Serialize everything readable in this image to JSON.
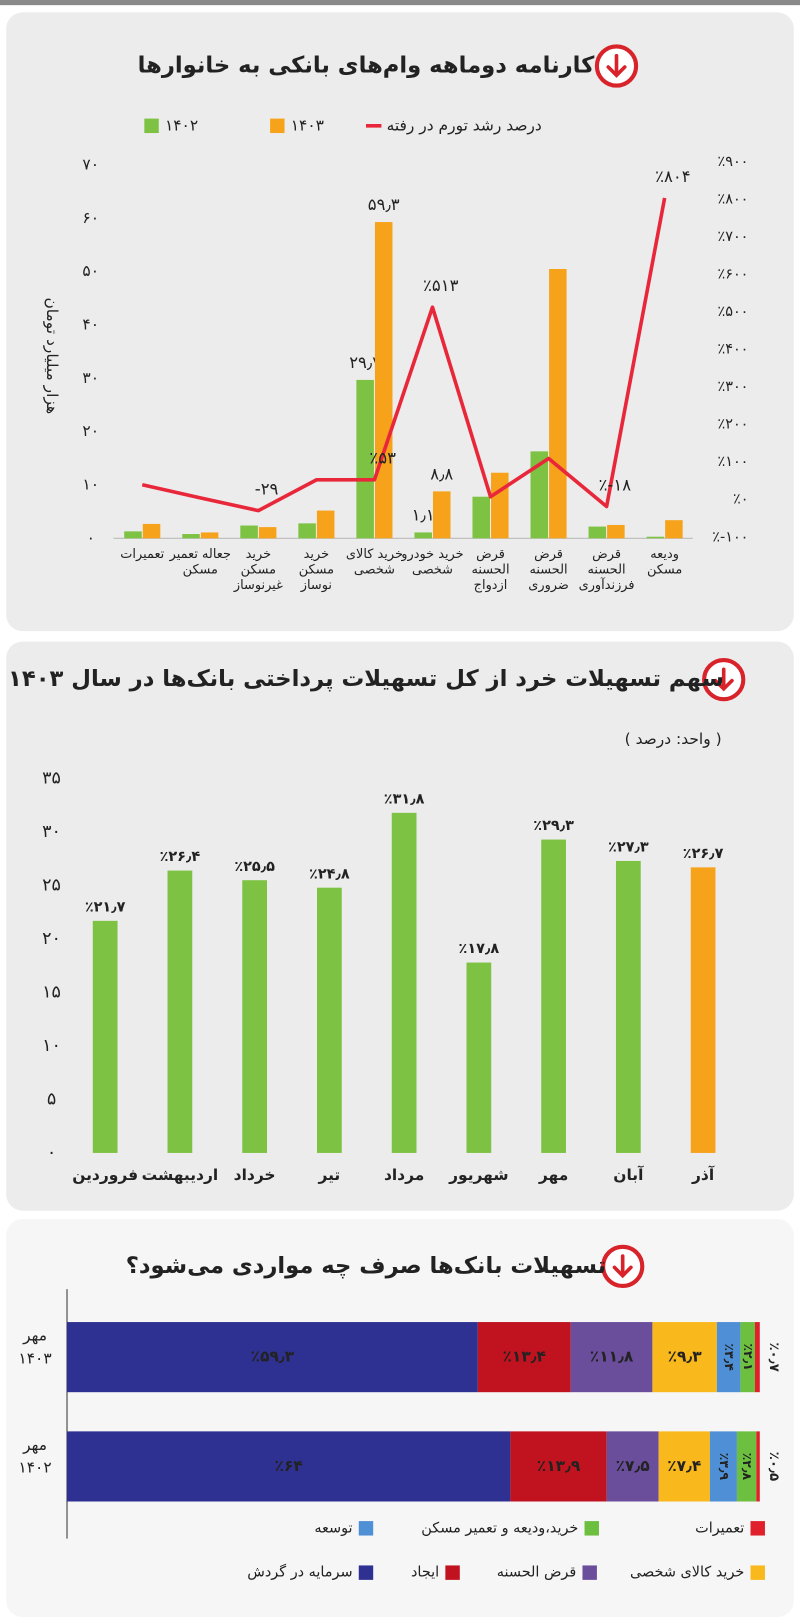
{
  "chart_data": [
    {
      "type": "combo",
      "title": "کارنامه دوماهه وام‌های بانکی به خانوارها",
      "y_label": "هزار میلیارد تومان",
      "categories": [
        "تعمیرات",
        "جعاله تعمیر مسکن",
        "خرید مسکن غیرنوساز",
        "خرید مسکن نوساز",
        "خرید کالای شخصی",
        "خرید خودرو شخصی",
        "قرض الحسنه ازدواج",
        "قرض الحسنه ضروری",
        "قرض الحسنه فرزندآوری",
        "ودیعه مسکن"
      ],
      "series": [
        {
          "name": "۱۴۰۲",
          "color": "#7dc242",
          "values": [
            1.3,
            0.8,
            2.4,
            2.8,
            29.7,
            1.1,
            7.8,
            16.3,
            2.2,
            0.3
          ],
          "value_labels": [
            null,
            null,
            null,
            null,
            "۲۹٫۷",
            "۱٫۱",
            null,
            null,
            null,
            null
          ]
        },
        {
          "name": "۱۴۰۳",
          "color": "#f7a21b",
          "values": [
            2.7,
            1.1,
            2.1,
            5.2,
            59.3,
            8.8,
            12.3,
            50.5,
            2.5,
            3.4
          ],
          "value_labels": [
            null,
            null,
            null,
            null,
            "۵۹٫۳",
            "۸٫۸",
            null,
            null,
            null,
            null
          ]
        },
        {
          "name": "درصد رشد تورم در رفته",
          "color": "#e8283a",
          "axis": "y2",
          "values": [
            40,
            5,
            -29,
            53,
            53,
            513,
            8,
            110,
            -18,
            804
          ],
          "value_labels": [
            null,
            null,
            "-۲۹",
            null,
            "٪۵۳",
            "٪۵۱۳",
            null,
            null,
            "٪-۱۸",
            "٪۸۰۴"
          ]
        }
      ],
      "ylim": [
        0,
        70
      ],
      "yticks": [
        {
          "value": 0,
          "label": "۰"
        },
        {
          "value": 10,
          "label": "۱۰"
        },
        {
          "value": 20,
          "label": "۲۰"
        },
        {
          "value": 30,
          "label": "۳۰"
        },
        {
          "value": 40,
          "label": "۴۰"
        },
        {
          "value": 50,
          "label": "۵۰"
        },
        {
          "value": 60,
          "label": "۶۰"
        },
        {
          "value": 70,
          "label": "۷۰"
        }
      ],
      "y2lim": [
        -100,
        900
      ],
      "y2ticks": [
        {
          "value": -100,
          "label": "٪-۱۰۰"
        },
        {
          "value": 0,
          "label": "٪۰"
        },
        {
          "value": 100,
          "label": "٪۱۰۰"
        },
        {
          "value": 200,
          "label": "٪۲۰۰"
        },
        {
          "value": 300,
          "label": "٪۳۰۰"
        },
        {
          "value": 400,
          "label": "٪۴۰۰"
        },
        {
          "value": 500,
          "label": "٪۵۰۰"
        },
        {
          "value": 600,
          "label": "٪۶۰۰"
        },
        {
          "value": 700,
          "label": "٪۷۰۰"
        },
        {
          "value": 800,
          "label": "٪۸۰۰"
        },
        {
          "value": 900,
          "label": "٪۹۰۰"
        }
      ]
    },
    {
      "type": "bar",
      "title": "سهم تسهیلات خرد از کل تسهیلات پرداختی بانک‌ها در سال ۱۴۰۳",
      "subtitle": "( واحد: درصد )",
      "categories": [
        "فروردین",
        "اردیبهشت",
        "خرداد",
        "تیر",
        "مرداد",
        "شهریور",
        "مهر",
        "آبان",
        "آذر"
      ],
      "values": [
        21.7,
        26.4,
        25.5,
        24.8,
        31.8,
        17.8,
        29.3,
        27.3,
        26.7
      ],
      "value_labels": [
        "٪۲۱٫۷",
        "٪۲۶٫۴",
        "٪۲۵٫۵",
        "٪۲۴٫۸",
        "٪۳۱٫۸",
        "٪۱۷٫۸",
        "٪۲۹٫۳",
        "٪۲۷٫۳",
        "٪۲۶٫۷"
      ],
      "colors": [
        "#7dc242",
        "#7dc242",
        "#7dc242",
        "#7dc242",
        "#7dc242",
        "#7dc242",
        "#7dc242",
        "#7dc242",
        "#f7a21b"
      ],
      "ylim": [
        0,
        35
      ],
      "yticks": [
        {
          "value": 0,
          "label": "۰"
        },
        {
          "value": 5,
          "label": "۵"
        },
        {
          "value": 10,
          "label": "۱۰"
        },
        {
          "value": 15,
          "label": "۱۵"
        },
        {
          "value": 20,
          "label": "۲۰"
        },
        {
          "value": 25,
          "label": "۲۵"
        },
        {
          "value": 30,
          "label": "۳۰"
        },
        {
          "value": 35,
          "label": "۳۵"
        }
      ]
    },
    {
      "type": "stacked_barh",
      "title": "تسهیلات بانک‌ها صرف چه مواردی می‌شود؟",
      "categories": [
        "مهر ۱۴۰۳",
        "مهر ۱۴۰۲"
      ],
      "xlim": [
        0,
        100
      ],
      "series": [
        {
          "name": "سرمایه در گردش",
          "color": "#2e3192",
          "values": [
            59.3,
            64
          ],
          "value_labels": [
            "٪۵۹٫۳",
            "٪۶۴"
          ]
        },
        {
          "name": "ایجاد",
          "color": "#c1121f",
          "values": [
            13.4,
            13.9
          ],
          "value_labels": [
            "٪۱۳٫۴",
            "٪۱۳٫۹"
          ]
        },
        {
          "name": "قرض الحسنه",
          "color": "#6a4e9c",
          "values": [
            11.8,
            7.5
          ],
          "value_labels": [
            "٪۱۱٫۸",
            "٪۷٫۵"
          ]
        },
        {
          "name": "خرید کالای شخصی",
          "color": "#f9b81b",
          "values": [
            9.3,
            7.4
          ],
          "value_labels": [
            "٪۹٫۳",
            "٪۷٫۴"
          ]
        },
        {
          "name": "توسعه",
          "color": "#4f8fd6",
          "values": [
            3.4,
            3.9
          ],
          "value_labels": [
            "٪۳٫۴",
            "٪۳٫۹"
          ]
        },
        {
          "name": "خرید،ودیعه و تعمیر مسکن",
          "color": "#6cbf3f",
          "values": [
            2.1,
            2.8
          ],
          "value_labels": [
            "٪۲٫۱",
            "٪۲٫۸"
          ]
        },
        {
          "name": "تعمیرات",
          "color": "#e0202a",
          "values": [
            0.7,
            0.5
          ],
          "value_labels": [
            "٪۰٫۷",
            "٪۰٫۵"
          ]
        }
      ]
    }
  ]
}
